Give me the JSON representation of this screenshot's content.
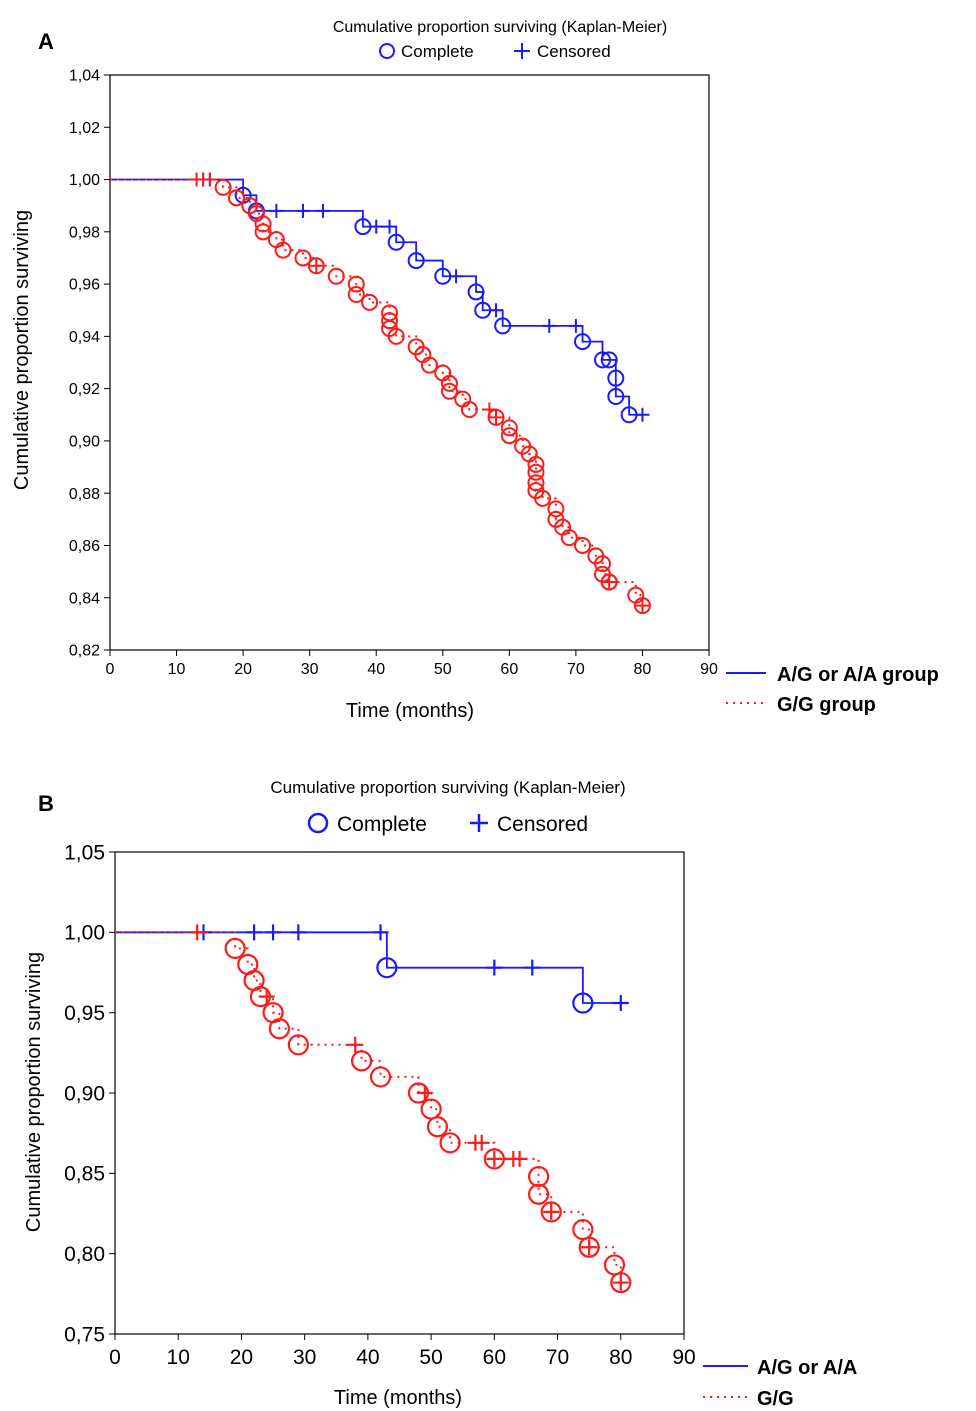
{
  "chart_data": [
    {
      "panel_label": "A",
      "type": "line",
      "title": "Cumulative proportion surviving (Kaplan-Meier)",
      "legend_markers": [
        {
          "symbol": "circle",
          "label": "Complete",
          "color": "#1a1aff"
        },
        {
          "symbol": "plus",
          "label": "Censored",
          "color": "#1a1aff"
        }
      ],
      "xlabel": "Time (months)",
      "ylabel": "Cumulative proportion surviving",
      "xlim": [
        0,
        90
      ],
      "ylim": [
        0.82,
        1.04
      ],
      "x_ticks": [
        0,
        10,
        20,
        30,
        40,
        50,
        60,
        70,
        80,
        90
      ],
      "x_tick_labels": [
        "0",
        "10",
        "20",
        "30",
        "40",
        "50",
        "60",
        "70",
        "80",
        "90"
      ],
      "y_ticks": [
        0.82,
        0.84,
        0.86,
        0.88,
        0.9,
        0.92,
        0.94,
        0.96,
        0.98,
        1.0,
        1.02,
        1.04
      ],
      "y_tick_labels": [
        "0,82",
        "0,84",
        "0,86",
        "0,88",
        "0,90",
        "0,92",
        "0,94",
        "0,96",
        "0,98",
        "1,00",
        "1,02",
        "1,04"
      ],
      "grid": false,
      "legend_position": "bottom-right",
      "series": [
        {
          "name": "A/G or A/A group",
          "color": "#1a1aff",
          "line_style": "solid",
          "events": [
            [
              20,
              0.994
            ],
            [
              22,
              0.988
            ],
            [
              38,
              0.982
            ],
            [
              43,
              0.976
            ],
            [
              46,
              0.969
            ],
            [
              50,
              0.963
            ],
            [
              55,
              0.957
            ],
            [
              56,
              0.95
            ],
            [
              59,
              0.944
            ],
            [
              71,
              0.938
            ],
            [
              74,
              0.931
            ],
            [
              75,
              0.931
            ],
            [
              76,
              0.924
            ],
            [
              76,
              0.917
            ],
            [
              78,
              0.91
            ]
          ],
          "censored": [
            [
              14,
              1.0
            ],
            [
              15,
              1.0
            ],
            [
              25,
              0.988
            ],
            [
              29,
              0.988
            ],
            [
              32,
              0.988
            ],
            [
              40,
              0.982
            ],
            [
              42,
              0.982
            ],
            [
              52,
              0.963
            ],
            [
              58,
              0.95
            ],
            [
              66,
              0.944
            ],
            [
              70,
              0.944
            ],
            [
              80,
              0.91
            ]
          ],
          "end_x": 80
        },
        {
          "name": "G/G group",
          "color": "#ff1a1a",
          "line_style": "dotted",
          "events": [
            [
              17,
              0.997
            ],
            [
              19,
              0.993
            ],
            [
              21,
              0.99
            ],
            [
              22,
              0.987
            ],
            [
              23,
              0.983
            ],
            [
              23,
              0.98
            ],
            [
              25,
              0.977
            ],
            [
              26,
              0.973
            ],
            [
              29,
              0.97
            ],
            [
              31,
              0.967
            ],
            [
              34,
              0.963
            ],
            [
              37,
              0.96
            ],
            [
              37,
              0.956
            ],
            [
              39,
              0.953
            ],
            [
              42,
              0.949
            ],
            [
              42,
              0.946
            ],
            [
              42,
              0.943
            ],
            [
              43,
              0.94
            ],
            [
              46,
              0.936
            ],
            [
              47,
              0.933
            ],
            [
              48,
              0.929
            ],
            [
              50,
              0.926
            ],
            [
              51,
              0.922
            ],
            [
              51,
              0.919
            ],
            [
              53,
              0.916
            ],
            [
              54,
              0.912
            ],
            [
              58,
              0.909
            ],
            [
              60,
              0.905
            ],
            [
              60,
              0.902
            ],
            [
              62,
              0.898
            ],
            [
              63,
              0.895
            ],
            [
              64,
              0.891
            ],
            [
              64,
              0.888
            ],
            [
              64,
              0.884
            ],
            [
              64,
              0.881
            ],
            [
              65,
              0.878
            ],
            [
              67,
              0.874
            ],
            [
              67,
              0.87
            ],
            [
              68,
              0.867
            ],
            [
              69,
              0.863
            ],
            [
              71,
              0.86
            ],
            [
              73,
              0.856
            ],
            [
              74,
              0.853
            ],
            [
              74,
              0.849
            ],
            [
              75,
              0.846
            ],
            [
              75,
              0.846
            ],
            [
              79,
              0.841
            ],
            [
              80,
              0.837
            ]
          ],
          "censored": [
            [
              13,
              1.0
            ],
            [
              14,
              1.0
            ],
            [
              15,
              1.0
            ],
            [
              31,
              0.967
            ],
            [
              57,
              0.912
            ],
            [
              58,
              0.909
            ],
            [
              75,
              0.846
            ],
            [
              80,
              0.837
            ]
          ],
          "end_x": 80
        }
      ]
    },
    {
      "panel_label": "B",
      "type": "line",
      "title": "Cumulative proportion surviving (Kaplan-Meier)",
      "legend_markers": [
        {
          "symbol": "circle",
          "label": "Complete",
          "color": "#1a1aff"
        },
        {
          "symbol": "plus",
          "label": "Censored",
          "color": "#1a1aff"
        }
      ],
      "xlabel": "Time (months)",
      "ylabel": "Cumulative proportion surviving",
      "xlim": [
        0,
        90
      ],
      "ylim": [
        0.75,
        1.05
      ],
      "x_ticks": [
        0,
        10,
        20,
        30,
        40,
        50,
        60,
        70,
        80,
        90
      ],
      "x_tick_labels": [
        "0",
        "10",
        "20",
        "30",
        "40",
        "50",
        "60",
        "70",
        "80",
        "90"
      ],
      "y_ticks": [
        0.75,
        0.8,
        0.85,
        0.9,
        0.95,
        1.0,
        1.05
      ],
      "y_tick_labels": [
        "0,75",
        "0,80",
        "0,85",
        "0,90",
        "0,95",
        "1,00",
        "1,05"
      ],
      "grid": false,
      "legend_position": "bottom-right",
      "series": [
        {
          "name": "A/G or A/A",
          "color": "#1a1aff",
          "line_style": "solid",
          "events": [
            [
              43,
              0.978
            ],
            [
              74,
              0.956
            ]
          ],
          "censored": [
            [
              14,
              1.0
            ],
            [
              22,
              1.0
            ],
            [
              25,
              1.0
            ],
            [
              29,
              1.0
            ],
            [
              42,
              1.0
            ],
            [
              60,
              0.978
            ],
            [
              66,
              0.978
            ],
            [
              80,
              0.956
            ]
          ],
          "end_x": 81
        },
        {
          "name": "G/G",
          "color": "#ff1a1a",
          "line_style": "dotted",
          "events": [
            [
              19,
              0.99
            ],
            [
              21,
              0.98
            ],
            [
              22,
              0.97
            ],
            [
              23,
              0.96
            ],
            [
              25,
              0.95
            ],
            [
              26,
              0.94
            ],
            [
              29,
              0.93
            ],
            [
              39,
              0.92
            ],
            [
              42,
              0.91
            ],
            [
              48,
              0.9
            ],
            [
              50,
              0.89
            ],
            [
              51,
              0.879
            ],
            [
              53,
              0.869
            ],
            [
              60,
              0.859
            ],
            [
              67,
              0.848
            ],
            [
              67,
              0.837
            ],
            [
              69,
              0.826
            ],
            [
              74,
              0.815
            ],
            [
              75,
              0.804
            ],
            [
              79,
              0.793
            ],
            [
              80,
              0.782
            ]
          ],
          "censored": [
            [
              13,
              1.0
            ],
            [
              24,
              0.96
            ],
            [
              38,
              0.93
            ],
            [
              49,
              0.9
            ],
            [
              57,
              0.869
            ],
            [
              58,
              0.869
            ],
            [
              60,
              0.859
            ],
            [
              63,
              0.859
            ],
            [
              64,
              0.859
            ],
            [
              69,
              0.826
            ],
            [
              75,
              0.804
            ],
            [
              80,
              0.782
            ]
          ],
          "end_x": 80
        }
      ]
    }
  ]
}
